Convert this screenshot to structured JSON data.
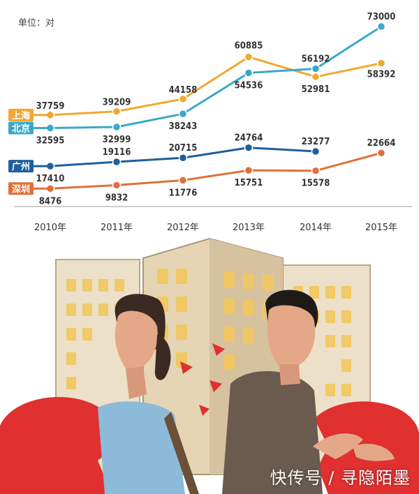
{
  "chart_data": {
    "type": "line",
    "unit_label": "单位：对",
    "categories": [
      "2010年",
      "2011年",
      "2012年",
      "2013年",
      "2014年",
      "2015年"
    ],
    "series": [
      {
        "name": "上海",
        "color": "#f0a830",
        "values": [
          37759,
          39209,
          44158,
          60885,
          52981,
          58392
        ]
      },
      {
        "name": "北京",
        "color": "#3aa8c8",
        "values": [
          32595,
          32999,
          38243,
          54536,
          56192,
          73000
        ]
      },
      {
        "name": "广州",
        "color": "#1f5f9c",
        "values": [
          17410,
          19116,
          20715,
          24764,
          23277,
          null
        ]
      },
      {
        "name": "深圳",
        "color": "#e0703a",
        "values": [
          8476,
          9832,
          11776,
          15751,
          15578,
          22664
        ]
      }
    ],
    "grid": false,
    "legend": "left"
  },
  "watermark": "快传号 / 寻隐陌墨",
  "colors": {
    "red_heart": "#e03030",
    "building": "#e8d8c0",
    "window": "#f0c860"
  }
}
